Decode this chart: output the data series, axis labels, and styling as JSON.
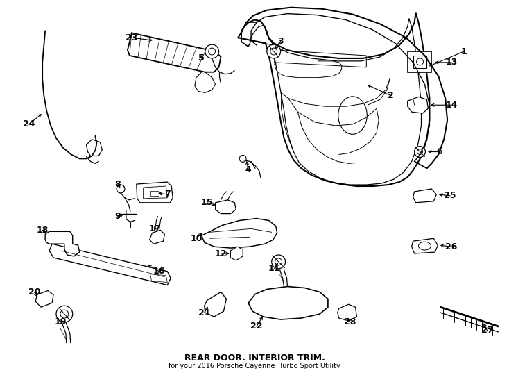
{
  "title": "REAR DOOR. INTERIOR TRIM.",
  "subtitle": "for your 2016 Porsche Cayenne  Turbo Sport Utility",
  "bg_color": "#ffffff",
  "line_color": "#000000",
  "text_color": "#000000",
  "fig_width": 7.34,
  "fig_height": 5.4,
  "dpi": 100
}
